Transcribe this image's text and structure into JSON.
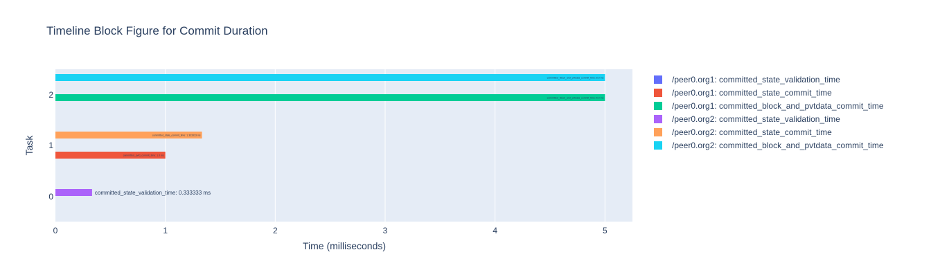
{
  "chart_data": {
    "type": "bar",
    "orientation": "horizontal",
    "title": "Timeline Block Figure for Commit Duration",
    "xlabel": "Time (milliseconds)",
    "ylabel": "Task",
    "xlim": [
      0,
      5.25
    ],
    "ylim": [
      -0.5,
      2.5
    ],
    "x_ticks": [
      "0",
      "1",
      "2",
      "3",
      "4",
      "5"
    ],
    "y_ticks": [
      "0",
      "1",
      "2"
    ],
    "grid": true,
    "legend_position": "right",
    "series": [
      {
        "name": "/peer0.org1: committed_state_validation_time",
        "color": "#636efa",
        "task": 2,
        "start": 0,
        "end": 0,
        "label": ""
      },
      {
        "name": "/peer0.org1: committed_state_commit_time",
        "color": "#ef553b",
        "task": 1,
        "start": 0,
        "end": 1.0,
        "label": "committed_pvtd_commit_time: 1.0 ms"
      },
      {
        "name": "/peer0.org1: committed_block_and_pvtdata_commit_time",
        "color": "#00cc96",
        "task": 2,
        "start": 0,
        "end": 5.0,
        "label": "committed_block_and_pvtdata_commit_time: 5.0 ms"
      },
      {
        "name": "/peer0.org2: committed_state_validation_time",
        "color": "#ab63fa",
        "task": 0,
        "start": 0,
        "end": 0.333333,
        "label": "committed_state_validation_time: 0.333333 ms"
      },
      {
        "name": "/peer0.org2: committed_state_commit_time",
        "color": "#ffa15a",
        "task": 1,
        "start": 0,
        "end": 1.333333,
        "label": "committed_state_commit_time: 1.333333 ms"
      },
      {
        "name": "/peer0.org2: committed_block_and_pvtdata_commit_time",
        "color": "#19d3f3",
        "task": 2,
        "start": 0,
        "end": 5.0,
        "label": "committed_block_and_pvtdata_commit_time: 5.0 ms"
      }
    ]
  }
}
